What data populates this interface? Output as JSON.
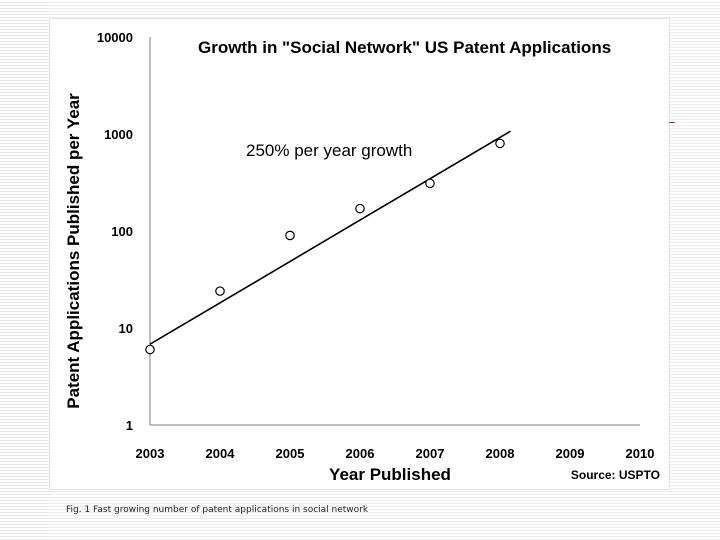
{
  "chart_data": {
    "type": "scatter",
    "title": "Growth in \"Social Network\" US Patent Applications",
    "xlabel": "Year Published",
    "ylabel": "Patent Applications Published per Year",
    "y_scale": "log",
    "ylim": [
      1,
      10000
    ],
    "y_ticks": [
      1,
      10,
      100,
      1000,
      10000
    ],
    "xlim": [
      2003,
      2010
    ],
    "x_ticks": [
      2003,
      2004,
      2005,
      2006,
      2007,
      2008,
      2009,
      2010
    ],
    "points": [
      {
        "x": 2003,
        "y": 6
      },
      {
        "x": 2004,
        "y": 24
      },
      {
        "x": 2005,
        "y": 90
      },
      {
        "x": 2006,
        "y": 170
      },
      {
        "x": 2007,
        "y": 310
      },
      {
        "x": 2008,
        "y": 800
      }
    ],
    "trendline": {
      "start": {
        "x": 2003,
        "y": 6.8
      },
      "end": {
        "x": 2008.15,
        "y": 1070
      }
    },
    "annotation": "250% per year growth",
    "source": "Source: USPTO",
    "grid": false,
    "legend": "none"
  },
  "caption": "Fig. 1 Fast growing number of patent applications in social network",
  "colors": {
    "accent_mark": "#d02020",
    "ink": "#000000"
  }
}
